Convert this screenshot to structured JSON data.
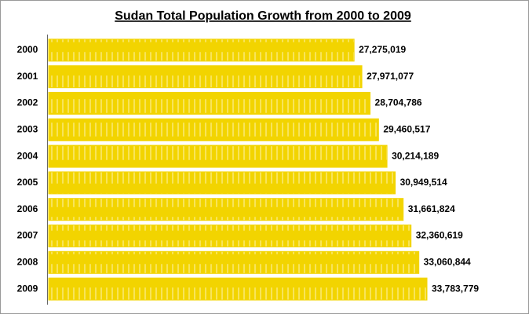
{
  "chart_data": {
    "type": "bar",
    "orientation": "horizontal",
    "title": "Sudan Total Population Growth from 2000 to 2009",
    "categories": [
      "2000",
      "2001",
      "2002",
      "2003",
      "2004",
      "2005",
      "2006",
      "2007",
      "2008",
      "2009"
    ],
    "values": [
      27275019,
      27971077,
      28704786,
      29460517,
      30214189,
      30949514,
      31661824,
      32360619,
      33060844,
      33783779
    ],
    "value_labels": [
      "27,275,019",
      "27,971,077",
      "28,704,786",
      "29,460,517",
      "30,214,189",
      "30,949,514",
      "31,661,824",
      "32,360,619",
      "33,060,844",
      "33,783,779"
    ],
    "color": "#f2d400"
  }
}
